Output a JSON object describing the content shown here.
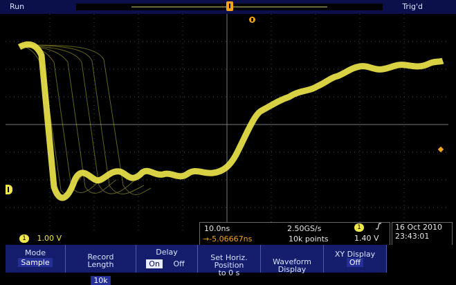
{
  "top_bar": {
    "run_label": "Run",
    "trigger_state": "Trig'd"
  },
  "channel": {
    "number": "1",
    "scale": "1.00 V",
    "color": "#f0e84a"
  },
  "horizontal": {
    "timebase": "10.0ns",
    "sample_rate": "2.50GS/s",
    "position": "→-5.06667ns",
    "points": "10k points"
  },
  "trigger": {
    "channel": "1",
    "level": "1.40 V",
    "color": "#f3a21a"
  },
  "datetime": {
    "date": "16 Oct 2010",
    "time": "23:43:01"
  },
  "menu": {
    "mode": {
      "label": "Mode",
      "value": "Sample"
    },
    "record_length": {
      "label": "Record\nLength",
      "value": "10k"
    },
    "delay": {
      "label": "Delay",
      "on": "On",
      "off": "Off"
    },
    "horiz_position": {
      "label": "Set Horiz.\nPosition\nto 0 s"
    },
    "waveform_display": {
      "label": "Waveform\nDisplay"
    },
    "xy_display": {
      "label": "XY Display",
      "value": "Off"
    }
  },
  "colors": {
    "menu_bg": "#151d6d",
    "top_bar_bg": "#0b0f4a",
    "grid": "#5a5a5a"
  }
}
